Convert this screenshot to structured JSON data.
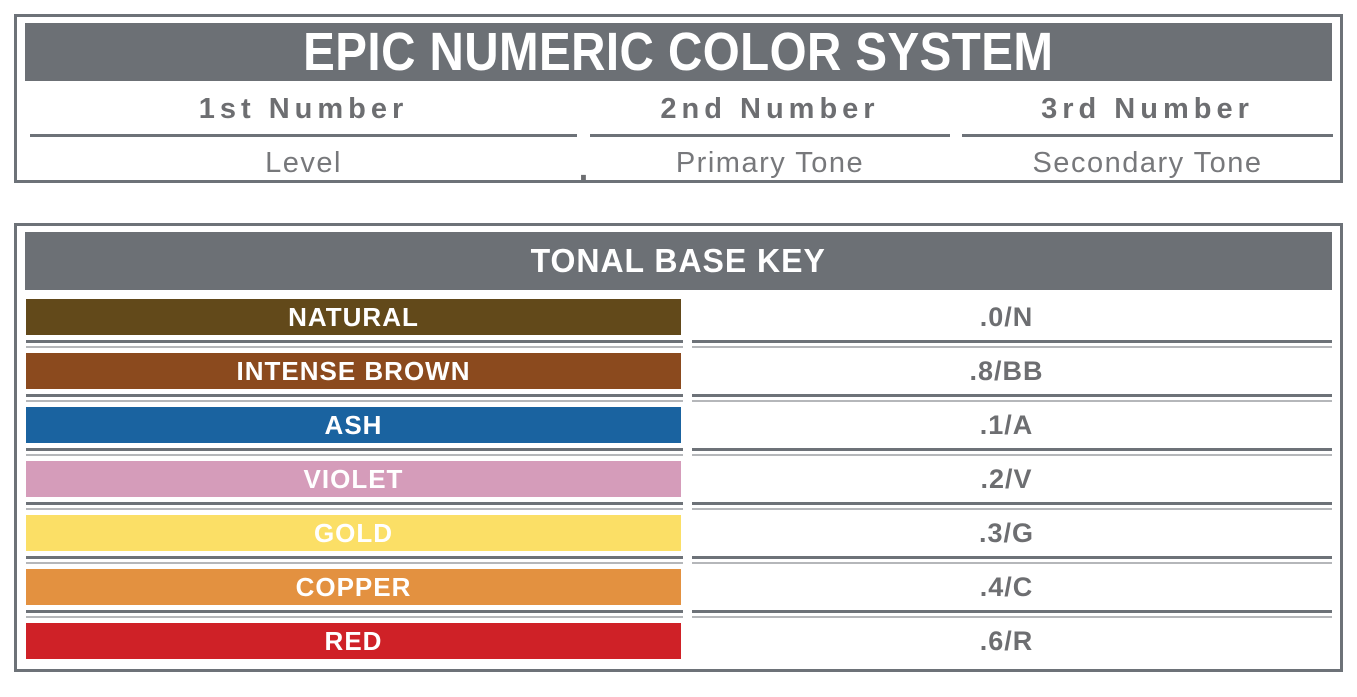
{
  "system_header": {
    "title": "EPIC NUMERIC COLOR SYSTEM",
    "separator_dot": ".",
    "columns": [
      {
        "number_label": "1st Number",
        "meaning": "Level"
      },
      {
        "number_label": "2nd Number",
        "meaning": "Primary Tone"
      },
      {
        "number_label": "3rd Number",
        "meaning": "Secondary Tone"
      }
    ]
  },
  "tonal_base_key": {
    "title": "TONAL BASE KEY",
    "rows": [
      {
        "name": "NATURAL",
        "code": ".0/N",
        "color": "#62491a"
      },
      {
        "name": "INTENSE BROWN",
        "code": ".8/BB",
        "color": "#8b4a1e"
      },
      {
        "name": "ASH",
        "code": ".1/A",
        "color": "#1a63a0"
      },
      {
        "name": "VIOLET",
        "code": ".2/V",
        "color": "#d59cba"
      },
      {
        "name": "GOLD",
        "code": ".3/G",
        "color": "#fbdf66"
      },
      {
        "name": "COPPER",
        "code": ".4/C",
        "color": "#e39140"
      },
      {
        "name": "RED",
        "code": ".6/R",
        "color": "#cf2127"
      }
    ]
  },
  "colors": {
    "frame_gray": "#6d7278",
    "band_gray": "#6c7075",
    "text_gray": "#6d6e71",
    "light_line": "#b5b7ba"
  }
}
